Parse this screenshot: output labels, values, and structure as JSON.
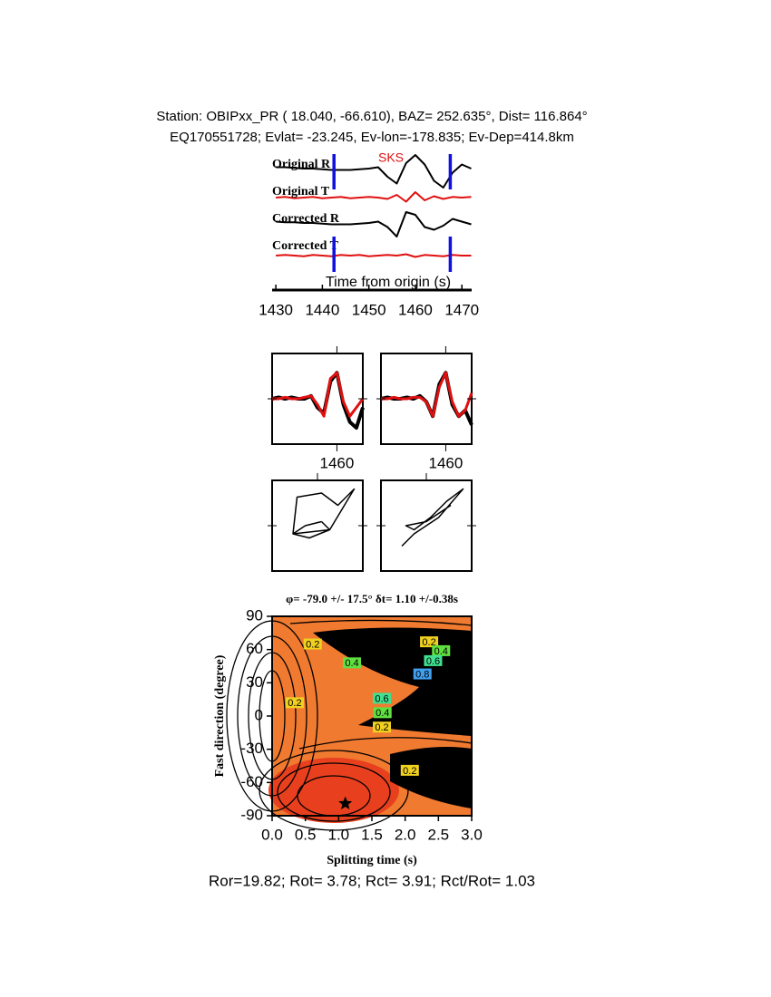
{
  "header": {
    "station": "Station: OBIPxx_PR (  18.040,  -66.610), BAZ=  252.635°, Dist=  116.864°",
    "event": "EQ170551728; Evlat= -23.245, Ev-lon=-178.835; Ev-Dep=414.8km"
  },
  "footer": "Ror=19.82; Rot= 3.78; Rct= 3.91; Rct/Rot= 1.03",
  "chart_data": [
    {
      "type": "line",
      "xlabel": "Time from origin (s)",
      "annotation": "SKS",
      "xlim": [
        1429.2,
        1472.1
      ],
      "xticks": [
        1430,
        1440,
        1450,
        1460,
        1470
      ],
      "window": [
        1442.5,
        1467.5
      ],
      "window_color": "#1010e0",
      "x": [
        1430,
        1432,
        1434,
        1436,
        1438,
        1440,
        1442,
        1444,
        1446,
        1448,
        1450,
        1452,
        1454,
        1456,
        1458,
        1460,
        1462,
        1464,
        1466,
        1468,
        1470,
        1472
      ],
      "series": [
        {
          "name": "Original R",
          "color": "#000000",
          "values": [
            0.1,
            0.1,
            0.05,
            0,
            0,
            -0.05,
            -0.1,
            -0.1,
            -0.1,
            -0.05,
            0,
            0.1,
            -0.6,
            -1.1,
            0.4,
            1.0,
            0.3,
            -0.9,
            -1.4,
            -0.3,
            0.3,
            0
          ]
        },
        {
          "name": "Original T",
          "color": "#e01010",
          "values": [
            0,
            0.05,
            -0.05,
            0,
            0.05,
            -0.05,
            0,
            0.05,
            -0.05,
            0,
            0.05,
            0,
            -0.1,
            0.2,
            -0.3,
            0.4,
            -0.2,
            0.1,
            -0.1,
            0.05,
            0,
            0.05
          ]
        },
        {
          "name": "Corrected R",
          "color": "#000000",
          "values": [
            0.1,
            0.05,
            0.05,
            0,
            0,
            -0.05,
            -0.1,
            -0.1,
            -0.1,
            -0.05,
            0,
            0.1,
            -0.3,
            -1.0,
            0.8,
            0.6,
            -0.3,
            -0.5,
            -0.2,
            0.3,
            0.1,
            -0.1
          ]
        },
        {
          "name": "Corrected T",
          "color": "#e01010",
          "values": [
            0,
            0.05,
            0,
            -0.05,
            0.05,
            0,
            -0.05,
            0.05,
            0,
            0.05,
            -0.05,
            0,
            0.05,
            0,
            0.1,
            -0.1,
            0.05,
            0,
            -0.05,
            0.05,
            0,
            0
          ]
        }
      ]
    },
    {
      "type": "compare",
      "xlim": [
        1450,
        1464
      ],
      "xticks": [
        1460
      ],
      "x": [
        1450,
        1451,
        1452,
        1453,
        1454,
        1455,
        1456,
        1457,
        1458,
        1459,
        1460,
        1461,
        1462,
        1463,
        1464
      ],
      "series": [
        {
          "color": "#000000",
          "values": [
            0,
            0.05,
            0,
            0.05,
            0,
            0,
            0.1,
            -0.3,
            -0.5,
            0.6,
            0.9,
            -0.2,
            -0.8,
            -1.0,
            -0.3
          ]
        },
        {
          "color": "#e01010",
          "values": [
            0,
            0,
            0.05,
            0,
            0,
            0.05,
            0.1,
            -0.2,
            -0.6,
            0.7,
            0.9,
            -0.1,
            -0.6,
            -0.3,
            0
          ]
        }
      ]
    },
    {
      "type": "compare",
      "xlim": [
        1450,
        1464
      ],
      "xticks": [
        1460
      ],
      "x": [
        1450,
        1451,
        1452,
        1453,
        1454,
        1455,
        1456,
        1457,
        1458,
        1459,
        1460,
        1461,
        1462,
        1463,
        1464
      ],
      "series": [
        {
          "color": "#000000",
          "values": [
            0,
            0.05,
            0,
            0,
            0.05,
            0,
            0.1,
            -0.1,
            -0.6,
            0.5,
            0.9,
            -0.2,
            -0.6,
            -0.4,
            -0.9
          ]
        },
        {
          "color": "#e01010",
          "values": [
            0,
            0,
            0.05,
            0,
            0,
            0.05,
            0.05,
            -0.1,
            -0.6,
            0.4,
            0.9,
            -0.1,
            -0.6,
            -0.4,
            0.2
          ]
        }
      ]
    },
    {
      "type": "particle",
      "color": "#000000",
      "x": [
        0.1,
        0.3,
        -0.6,
        -0.5,
        0.1,
        0.5,
        0.9,
        0.3,
        -0.2,
        -0.6,
        -0.3,
        0.1
      ],
      "values": [
        0.1,
        -0.1,
        -0.2,
        0.7,
        0.8,
        0.5,
        0.9,
        -0.1,
        -0.3,
        -0.2,
        0,
        0.1
      ]
    },
    {
      "type": "particle",
      "color": "#000000",
      "x": [
        -0.6,
        -0.3,
        0.0,
        0.3,
        0.9,
        0.5,
        0.1,
        -0.3,
        -0.5,
        0.0,
        0.6
      ],
      "values": [
        -0.5,
        -0.2,
        0.0,
        0.2,
        0.9,
        0.6,
        0.2,
        -0.1,
        0.0,
        0.1,
        0.5
      ]
    },
    {
      "type": "contour",
      "title": "φ= -79.0 +/- 17.5° δt= 1.10 +/-0.38s",
      "xlabel": "Splitting time (s)",
      "ylabel": "Fast direction (degree)",
      "xlim": [
        0,
        3
      ],
      "ylim": [
        -90,
        90
      ],
      "xticks": [
        {
          "value": 0,
          "label": "0.0"
        },
        {
          "value": 0.5,
          "label": "0.5"
        },
        {
          "value": 1,
          "label": "1.0"
        },
        {
          "value": 1.5,
          "label": "1.5"
        },
        {
          "value": 2,
          "label": "2.0"
        },
        {
          "value": 2.5,
          "label": "2.5"
        },
        {
          "value": 3,
          "label": "3.0"
        }
      ],
      "yticks": [
        -90,
        -60,
        -30,
        0,
        30,
        60,
        90
      ],
      "best": {
        "x": 1.1,
        "y": -79
      },
      "contour_labels": [
        {
          "x": 0.61,
          "y": 65,
          "label": "0.2",
          "color": "#f0d020"
        },
        {
          "x": 1.2,
          "y": 48,
          "label": "0.4",
          "color": "#60e040"
        },
        {
          "x": 2.36,
          "y": 67,
          "label": "0.2",
          "color": "#f0d020"
        },
        {
          "x": 2.54,
          "y": 59,
          "label": "0.4",
          "color": "#60e040"
        },
        {
          "x": 2.42,
          "y": 50,
          "label": "0.6",
          "color": "#40e090"
        },
        {
          "x": 2.26,
          "y": 38,
          "label": "0.8",
          "color": "#40a0f0"
        },
        {
          "x": 1.65,
          "y": 16,
          "label": "0.6",
          "color": "#40e090"
        },
        {
          "x": 1.66,
          "y": 3,
          "label": "0.4",
          "color": "#60e040"
        },
        {
          "x": 1.65,
          "y": -10,
          "label": "0.2",
          "color": "#f0d020"
        },
        {
          "x": 0.34,
          "y": 12,
          "label": "0.2",
          "color": "#f0d020"
        },
        {
          "x": 2.07,
          "y": -49,
          "label": "0.2",
          "color": "#f0d020"
        }
      ]
    }
  ]
}
